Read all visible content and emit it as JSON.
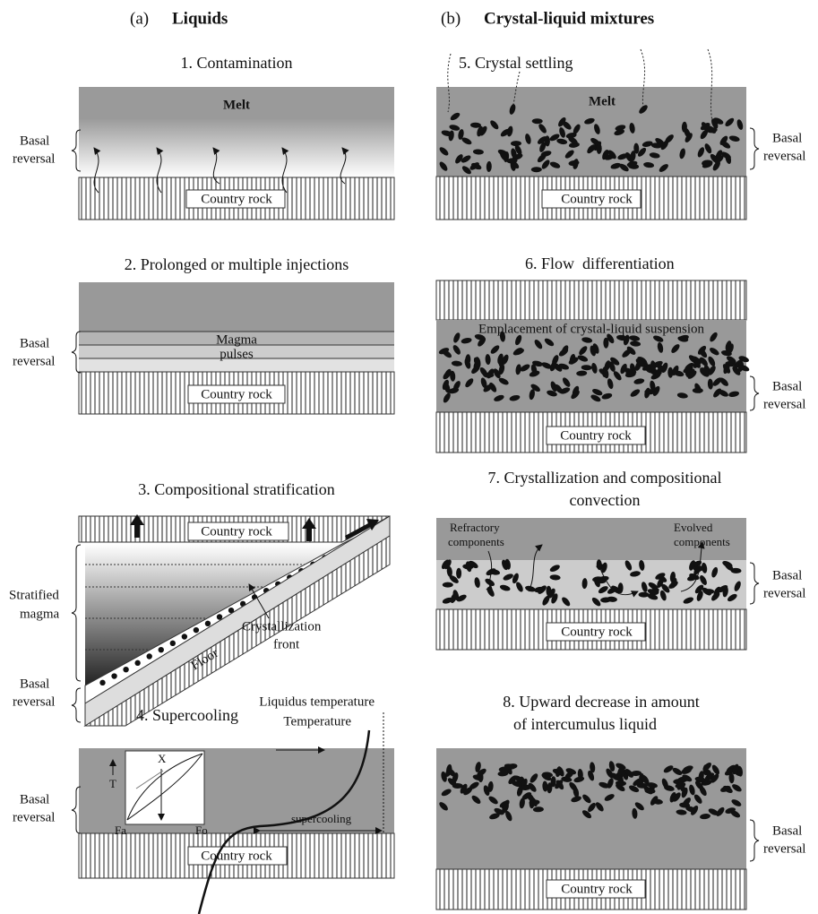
{
  "columns": [
    {
      "label": "(a)",
      "title": "Liquids"
    },
    {
      "label": "(b)",
      "title": "Crystal-liquid mixtures"
    }
  ],
  "panels": [
    {
      "title": [
        "1. Contamination"
      ],
      "labels": [
        "Melt",
        "Country rock"
      ],
      "side": [
        "Basal",
        "reversal"
      ]
    },
    {
      "title": [
        "2. Prolonged or multiple injections"
      ],
      "labels": [
        "Magma",
        "pulses",
        "Country rock"
      ],
      "side": [
        "Basal",
        "reversal"
      ]
    },
    {
      "title": [
        "3. Compositional stratification"
      ],
      "labels": [
        "Country rock",
        "Stratified",
        "magma",
        "Crystallization",
        "front",
        "Floor"
      ],
      "side": [
        "Basal",
        "reversal"
      ]
    },
    {
      "title": [
        "4. Supercooling"
      ],
      "labels": [
        "Liquidus temperature",
        "Temperature",
        "T",
        "X",
        "Fa",
        "Fo",
        "supercooling",
        "Country rock"
      ],
      "side": [
        "Basal",
        "reversal"
      ]
    },
    {
      "title": [
        "5. Crystal settling"
      ],
      "labels": [
        "Melt",
        "Country rock"
      ],
      "side": [
        "Basal",
        "reversal"
      ]
    },
    {
      "title": [
        "6. Flow  differentiation"
      ],
      "labels": [
        "Emplacement of crystal-liquid suspension",
        "Country rock"
      ],
      "side": [
        "Basal",
        "reversal"
      ]
    },
    {
      "title": [
        "7. Crystallization and compositional",
        "convection"
      ],
      "labels": [
        "Refractory",
        "components",
        "Evolved",
        "components",
        "Country rock"
      ],
      "side": [
        "Basal",
        "reversal"
      ]
    },
    {
      "title": [
        "8. Upward decrease in amount",
        "of intercumulus liquid"
      ],
      "labels": [
        "Country rock"
      ],
      "side": [
        "Basal",
        "reversal"
      ]
    }
  ]
}
